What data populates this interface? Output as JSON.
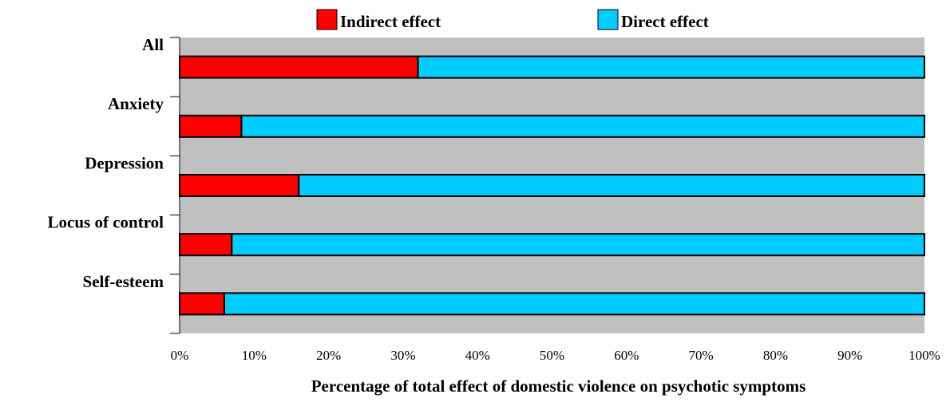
{
  "chart_data": {
    "type": "bar",
    "orientation": "horizontal",
    "stacked": true,
    "categories": [
      "All",
      "Anxiety",
      "Depression",
      "Locus of control",
      "Self-esteem"
    ],
    "series": [
      {
        "name": "Indirect effect",
        "values": [
          32,
          8.3,
          16,
          7,
          6
        ],
        "color": "#ff0000"
      },
      {
        "name": "Direct effect",
        "values": [
          68,
          91.7,
          84,
          93,
          94
        ],
        "color": "#00ccff"
      }
    ],
    "xlabel": "Percentage of total effect of domestic violence on psychotic symptoms",
    "ylabel": "",
    "xlim": [
      0,
      100
    ],
    "xticks": [
      "0%",
      "10%",
      "20%",
      "30%",
      "40%",
      "50%",
      "60%",
      "70%",
      "80%",
      "90%",
      "100%"
    ],
    "grid": false,
    "legend_position": "top",
    "plot_background": "#c0c0c0",
    "bar_outline": "#000000"
  }
}
